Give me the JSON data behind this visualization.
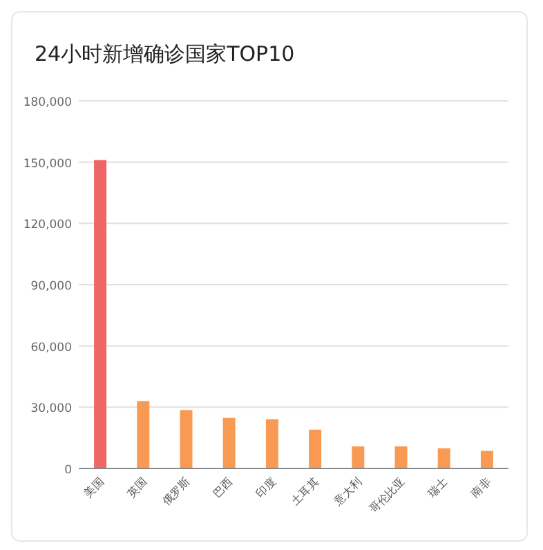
{
  "chart_data": {
    "type": "bar",
    "title": "24小时新增确诊国家TOP10",
    "categories": [
      "美国",
      "英国",
      "俄罗斯",
      "巴西",
      "印度",
      "土耳其",
      "意大利",
      "哥伦比亚",
      "瑞士",
      "南非"
    ],
    "values": [
      151000,
      33000,
      28600,
      24800,
      24100,
      19000,
      10800,
      10800,
      9900,
      8600
    ],
    "colors": [
      "#ee6666",
      "#f89a54",
      "#f89a54",
      "#f89a54",
      "#f89a54",
      "#f89a54",
      "#f89a54",
      "#f89a54",
      "#f89a54",
      "#f89a54"
    ],
    "ylim": [
      0,
      180000
    ],
    "yticks": [
      {
        "value": 0,
        "label": "0"
      },
      {
        "value": 30000,
        "label": "30,000"
      },
      {
        "value": 60000,
        "label": "60,000"
      },
      {
        "value": 90000,
        "label": "90,000"
      },
      {
        "value": 120000,
        "label": "120,000"
      },
      {
        "value": 150000,
        "label": "150,000"
      },
      {
        "value": 180000,
        "label": "180,000"
      }
    ],
    "grid": "y"
  }
}
